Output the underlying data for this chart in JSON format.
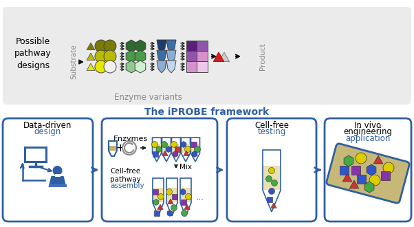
{
  "title": "The iPROBE framework",
  "title_color": "#2E5FA3",
  "title_fontsize": 10,
  "top_panel_bg": "#EBEBEB",
  "top_panel_text1": "Possible\npathway\ndesigns",
  "top_label_substrate": "Substrate",
  "top_label_enzyme": "Enzyme variants",
  "top_label_product": "Product",
  "box_edge_color": "#2E5FA3",
  "yellow_dark": "#7A7A00",
  "yellow_mid": "#BABA00",
  "yellow_light": "#E8E800",
  "white_circle": "#F0F0F0",
  "green_dark": "#2D6B2D",
  "green_mid": "#4A9B4A",
  "green_light": "#90C890",
  "blue_dark": "#1A3C6E",
  "blue_mid": "#3A6EA8",
  "blue_light": "#8AAFD4",
  "purple_dark": "#5B1E7A",
  "purple_mid": "#9055AA",
  "pink_light": "#D890CC",
  "red_triangle": "#CC2222",
  "tan_cell": "#C8B878",
  "blue_label": "#2E5FA3",
  "tube_colors": [
    "#DDCC00",
    "#44AA44",
    "#3355CC",
    "#CC3333",
    "#8833AA"
  ],
  "arrow_black": "#111111"
}
